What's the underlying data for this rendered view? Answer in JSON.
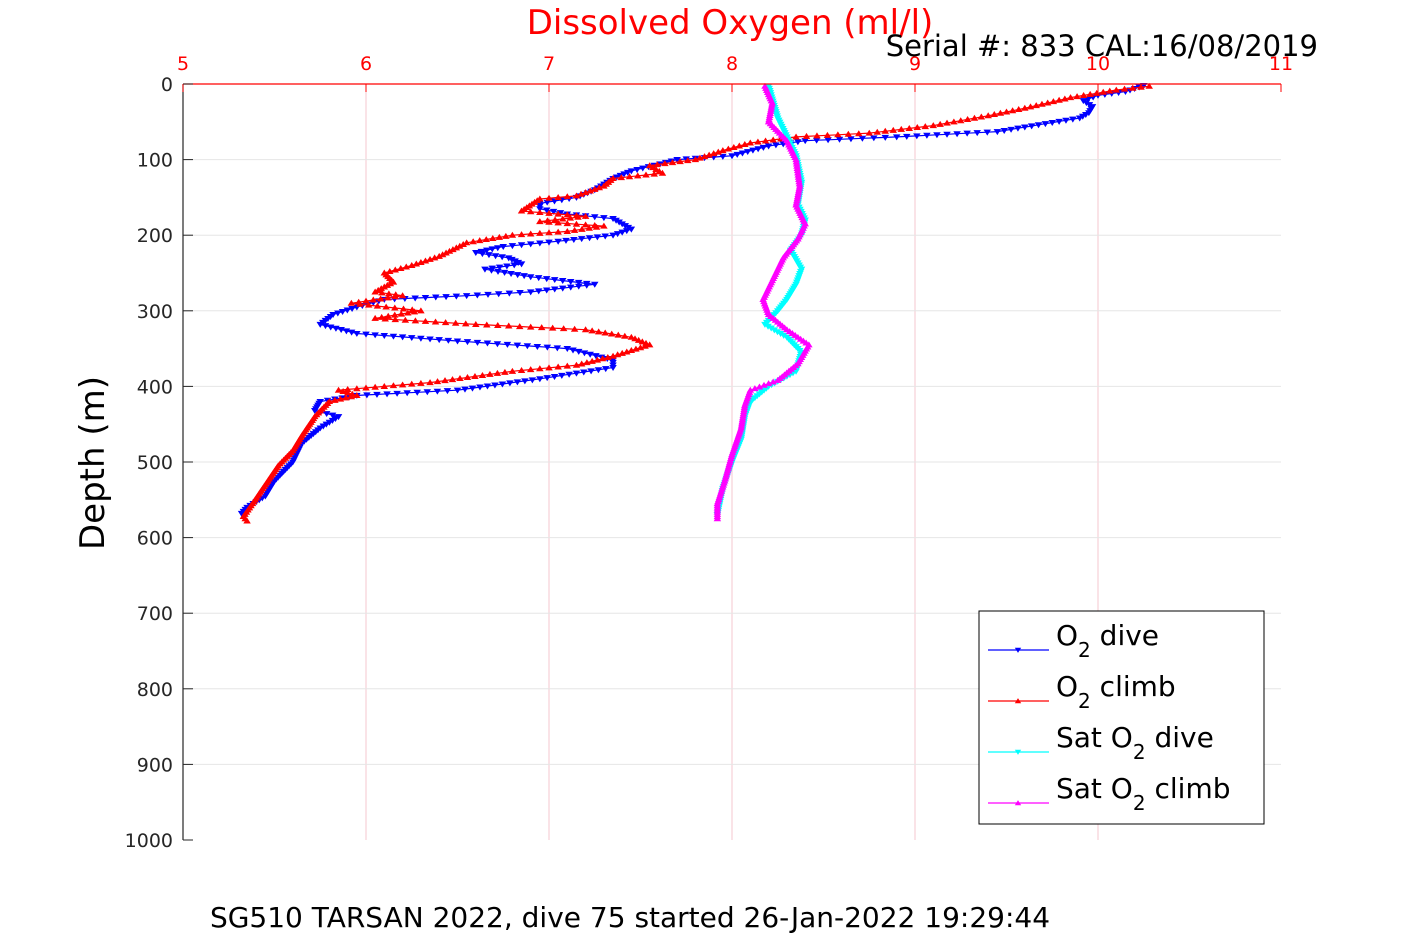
{
  "chart_data": {
    "type": "line",
    "title": "Dissolved Oxygen (ml/l)",
    "subtitle": "Serial #: 833  CAL:16/08/2019",
    "footer": "SG510 TARSAN 2022, dive 75 started 26-Jan-2022 19:29:44",
    "ylabel": "Depth (m)",
    "xlabel": "",
    "xlim": [
      5,
      11
    ],
    "ylim": [
      0,
      1000
    ],
    "y_reversed": true,
    "x_axis_position": "top",
    "x_ticks": [
      "5",
      "6",
      "7",
      "8",
      "9",
      "10",
      "11"
    ],
    "y_ticks": [
      "0",
      "100",
      "200",
      "300",
      "400",
      "500",
      "600",
      "700",
      "800",
      "900",
      "1000"
    ],
    "grid": true,
    "legend_position": "bottom-right",
    "colors": {
      "title": "#ff0000",
      "x_axis": "#ff0000",
      "grid": "#f4c7cf",
      "y_grid": "#e6e6e6"
    },
    "series": [
      {
        "name": "O2 dive",
        "legend_main": "O",
        "legend_sub": "2",
        "legend_tail": " dive",
        "color": "#0000ff",
        "marker": "triangle-down",
        "points": [
          [
            10.25,
            2
          ],
          [
            10.15,
            10
          ],
          [
            10.0,
            15
          ],
          [
            9.92,
            22
          ],
          [
            9.97,
            30
          ],
          [
            9.95,
            38
          ],
          [
            9.9,
            45
          ],
          [
            9.45,
            63
          ],
          [
            8.9,
            70
          ],
          [
            8.4,
            75
          ],
          [
            8.2,
            82
          ],
          [
            8.0,
            95
          ],
          [
            7.7,
            100
          ],
          [
            7.45,
            115
          ],
          [
            7.35,
            125
          ],
          [
            7.25,
            140
          ],
          [
            7.15,
            150
          ],
          [
            6.95,
            158
          ],
          [
            6.95,
            165
          ],
          [
            7.1,
            172
          ],
          [
            7.35,
            178
          ],
          [
            7.45,
            192
          ],
          [
            7.35,
            200
          ],
          [
            7.05,
            208
          ],
          [
            6.75,
            215
          ],
          [
            6.6,
            223
          ],
          [
            6.78,
            230
          ],
          [
            6.85,
            238
          ],
          [
            6.65,
            245
          ],
          [
            6.9,
            255
          ],
          [
            7.25,
            265
          ],
          [
            6.9,
            275
          ],
          [
            6.55,
            280
          ],
          [
            6.1,
            285
          ],
          [
            5.95,
            295
          ],
          [
            5.82,
            305
          ],
          [
            5.75,
            318
          ],
          [
            5.95,
            330
          ],
          [
            6.5,
            340
          ],
          [
            7.1,
            350
          ],
          [
            7.35,
            365
          ],
          [
            7.35,
            375
          ],
          [
            6.95,
            390
          ],
          [
            6.5,
            405
          ],
          [
            5.95,
            412
          ],
          [
            5.75,
            420
          ],
          [
            5.72,
            432
          ],
          [
            5.85,
            440
          ],
          [
            5.75,
            455
          ],
          [
            5.65,
            475
          ],
          [
            5.6,
            500
          ],
          [
            5.5,
            525
          ],
          [
            5.45,
            545
          ],
          [
            5.35,
            560
          ],
          [
            5.32,
            568
          ]
        ]
      },
      {
        "name": "O2 climb",
        "legend_main": "O",
        "legend_sub": "2",
        "legend_tail": " climb",
        "color": "#ff0000",
        "marker": "triangle-up",
        "points": [
          [
            10.28,
            3
          ],
          [
            10.1,
            8
          ],
          [
            9.85,
            18
          ],
          [
            9.6,
            32
          ],
          [
            9.4,
            42
          ],
          [
            9.1,
            55
          ],
          [
            8.75,
            65
          ],
          [
            8.35,
            70
          ],
          [
            8.1,
            78
          ],
          [
            7.95,
            88
          ],
          [
            7.8,
            100
          ],
          [
            7.55,
            108
          ],
          [
            7.62,
            118
          ],
          [
            7.35,
            125
          ],
          [
            7.3,
            135
          ],
          [
            7.15,
            148
          ],
          [
            6.95,
            152
          ],
          [
            6.85,
            168
          ],
          [
            7.2,
            175
          ],
          [
            6.95,
            182
          ],
          [
            7.3,
            188
          ],
          [
            7.1,
            195
          ],
          [
            6.8,
            200
          ],
          [
            6.55,
            210
          ],
          [
            6.4,
            228
          ],
          [
            6.25,
            240
          ],
          [
            6.1,
            250
          ],
          [
            6.15,
            262
          ],
          [
            6.05,
            275
          ],
          [
            6.2,
            280
          ],
          [
            5.92,
            290
          ],
          [
            6.3,
            300
          ],
          [
            6.05,
            310
          ],
          [
            6.6,
            318
          ],
          [
            7.2,
            325
          ],
          [
            7.45,
            335
          ],
          [
            7.55,
            345
          ],
          [
            7.35,
            360
          ],
          [
            7.15,
            372
          ],
          [
            6.8,
            380
          ],
          [
            6.35,
            395
          ],
          [
            5.85,
            405
          ],
          [
            5.95,
            412
          ],
          [
            5.8,
            420
          ],
          [
            5.72,
            440
          ],
          [
            5.65,
            465
          ],
          [
            5.6,
            485
          ],
          [
            5.52,
            505
          ],
          [
            5.45,
            530
          ],
          [
            5.38,
            555
          ],
          [
            5.33,
            572
          ],
          [
            5.35,
            578
          ]
        ]
      },
      {
        "name": "Sat O2 dive",
        "legend_main": "Sat O",
        "legend_sub": "2",
        "legend_tail": " dive",
        "color": "#00ffff",
        "marker": "triangle-down",
        "points": [
          [
            8.2,
            3
          ],
          [
            8.22,
            20
          ],
          [
            8.25,
            45
          ],
          [
            8.3,
            70
          ],
          [
            8.35,
            95
          ],
          [
            8.38,
            130
          ],
          [
            8.36,
            160
          ],
          [
            8.4,
            180
          ],
          [
            8.38,
            200
          ],
          [
            8.32,
            220
          ],
          [
            8.38,
            245
          ],
          [
            8.35,
            265
          ],
          [
            8.3,
            285
          ],
          [
            8.25,
            300
          ],
          [
            8.18,
            318
          ],
          [
            8.3,
            335
          ],
          [
            8.38,
            355
          ],
          [
            8.35,
            380
          ],
          [
            8.2,
            400
          ],
          [
            8.1,
            420
          ],
          [
            8.07,
            440
          ],
          [
            8.05,
            470
          ],
          [
            8.0,
            500
          ],
          [
            7.95,
            535
          ],
          [
            7.92,
            570
          ]
        ]
      },
      {
        "name": "Sat O2 climb",
        "legend_main": "Sat O",
        "legend_sub": "2",
        "legend_tail": " climb",
        "color": "#ff00ff",
        "marker": "triangle-up",
        "points": [
          [
            8.18,
            3
          ],
          [
            8.22,
            25
          ],
          [
            8.2,
            50
          ],
          [
            8.3,
            75
          ],
          [
            8.35,
            100
          ],
          [
            8.37,
            135
          ],
          [
            8.35,
            160
          ],
          [
            8.4,
            185
          ],
          [
            8.36,
            205
          ],
          [
            8.28,
            230
          ],
          [
            8.22,
            260
          ],
          [
            8.17,
            285
          ],
          [
            8.2,
            305
          ],
          [
            8.3,
            325
          ],
          [
            8.42,
            345
          ],
          [
            8.36,
            370
          ],
          [
            8.25,
            392
          ],
          [
            8.1,
            405
          ],
          [
            8.07,
            425
          ],
          [
            8.05,
            455
          ],
          [
            8.0,
            490
          ],
          [
            7.96,
            525
          ],
          [
            7.92,
            555
          ],
          [
            7.92,
            575
          ]
        ]
      }
    ]
  }
}
